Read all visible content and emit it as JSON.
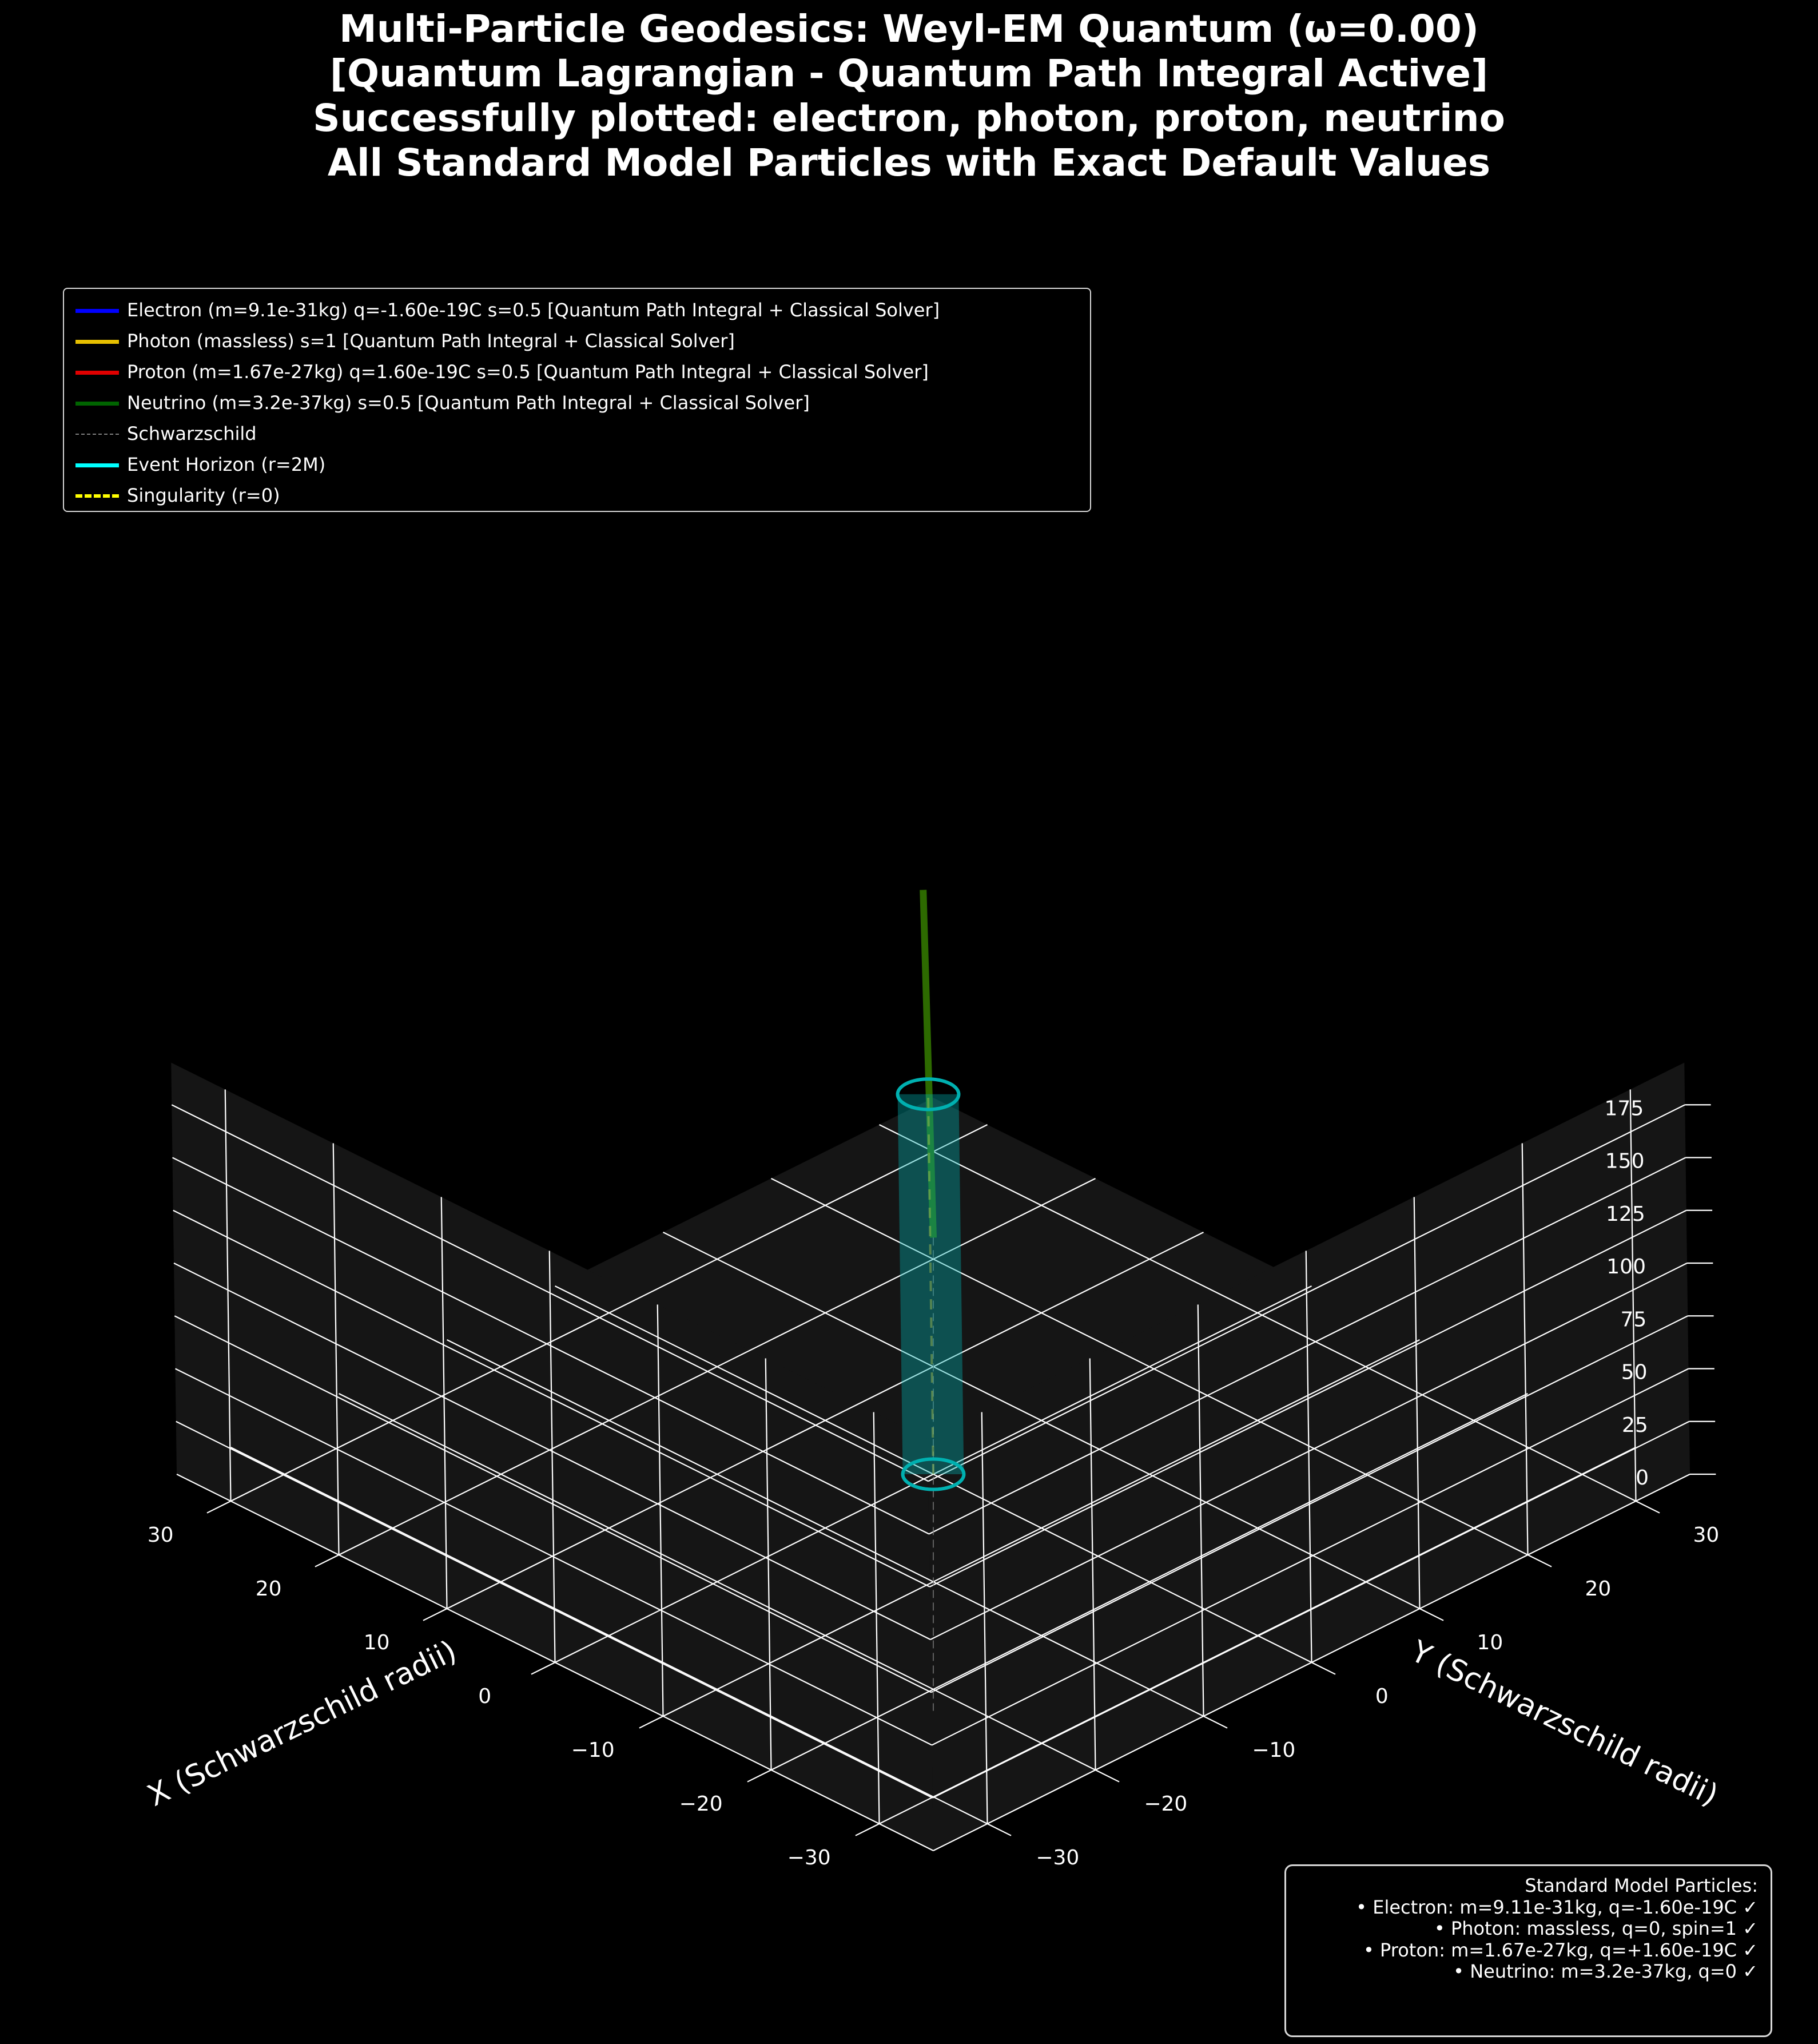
{
  "title_lines": [
    "Multi-Particle Geodesics: Weyl-EM Quantum (ω=0.00)",
    "[Quantum Lagrangian - Quantum Path Integral Active]",
    "Successfully plotted: electron, photon, proton, neutrino",
    "All Standard Model Particles with Exact Default Values"
  ],
  "legend": [
    {
      "label": "Electron (m=9.1e-31kg) q=-1.60e-19C s=0.5 [Quantum Path Integral + Classical Solver]",
      "color": "#0000ff",
      "style": "solid"
    },
    {
      "label": "Photon (massless) s=1 [Quantum Path Integral + Classical Solver]",
      "color": "#e6bf00",
      "style": "solid"
    },
    {
      "label": "Proton (m=1.67e-27kg) q=1.60e-19C s=0.5 [Quantum Path Integral + Classical Solver]",
      "color": "#e00000",
      "style": "solid"
    },
    {
      "label": "Neutrino (m=3.2e-37kg) s=0.5 [Quantum Path Integral + Classical Solver]",
      "color": "#006400",
      "style": "solid"
    },
    {
      "label": "Schwarzschild",
      "color": "#808080",
      "style": "thin-dashed"
    },
    {
      "label": "Event Horizon (r=2M)",
      "color": "#00ffff",
      "style": "solid"
    },
    {
      "label": "Singularity (r=0)",
      "color": "#ffff00",
      "style": "dashed"
    }
  ],
  "info_box": {
    "lines": [
      "Standard Model Particles:",
      "• Electron: m=9.11e-31kg, q=-1.60e-19C ✓",
      "• Photon: massless, q=0, spin=1 ✓",
      "• Proton: m=1.67e-27kg, q=+1.60e-19C ✓",
      "• Neutrino: m=3.2e-37kg, q=0 ✓"
    ]
  },
  "chart_data": {
    "type": "line",
    "projection": "3d",
    "background": "#000000",
    "pane_color": "#151515",
    "grid": true,
    "xlabel": "X (Schwarzschild radii)",
    "ylabel": "Y (Schwarzschild radii)",
    "zlabel": "",
    "xlim": [
      -35,
      35
    ],
    "ylim": [
      -35,
      35
    ],
    "zlim": [
      0,
      195
    ],
    "xticks": [
      -30,
      -20,
      -10,
      0,
      10,
      20,
      30
    ],
    "yticks": [
      -30,
      -20,
      -10,
      0,
      10,
      20,
      30
    ],
    "zticks": [
      0,
      25,
      50,
      75,
      100,
      125,
      150,
      175
    ],
    "legend_position": "upper-left",
    "series": [
      {
        "name": "Neutrino (m=3.2e-37kg) s=0.5 [Quantum Path Integral + Classical Solver]",
        "color": "#2d6a00",
        "points": [
          [
            22,
            22,
            0
          ],
          [
            22,
            21.5,
            166
          ]
        ]
      },
      {
        "name": "Schwarzschild",
        "color": "#808080",
        "style": "thin-dashed",
        "points": [
          [
            22,
            22,
            0
          ],
          [
            0,
            0,
            0
          ],
          [
            -22,
            -22,
            0
          ]
        ]
      },
      {
        "name": "Event Horizon (r=2M)",
        "color": "#00b0b0",
        "cylinder": {
          "radius": 2,
          "z": [
            0,
            180
          ]
        }
      },
      {
        "name": "Singularity (r=0)",
        "color": "#ffff00",
        "style": "dashed",
        "points": [
          [
            0,
            0,
            0
          ],
          [
            0,
            0,
            180
          ]
        ]
      }
    ]
  }
}
